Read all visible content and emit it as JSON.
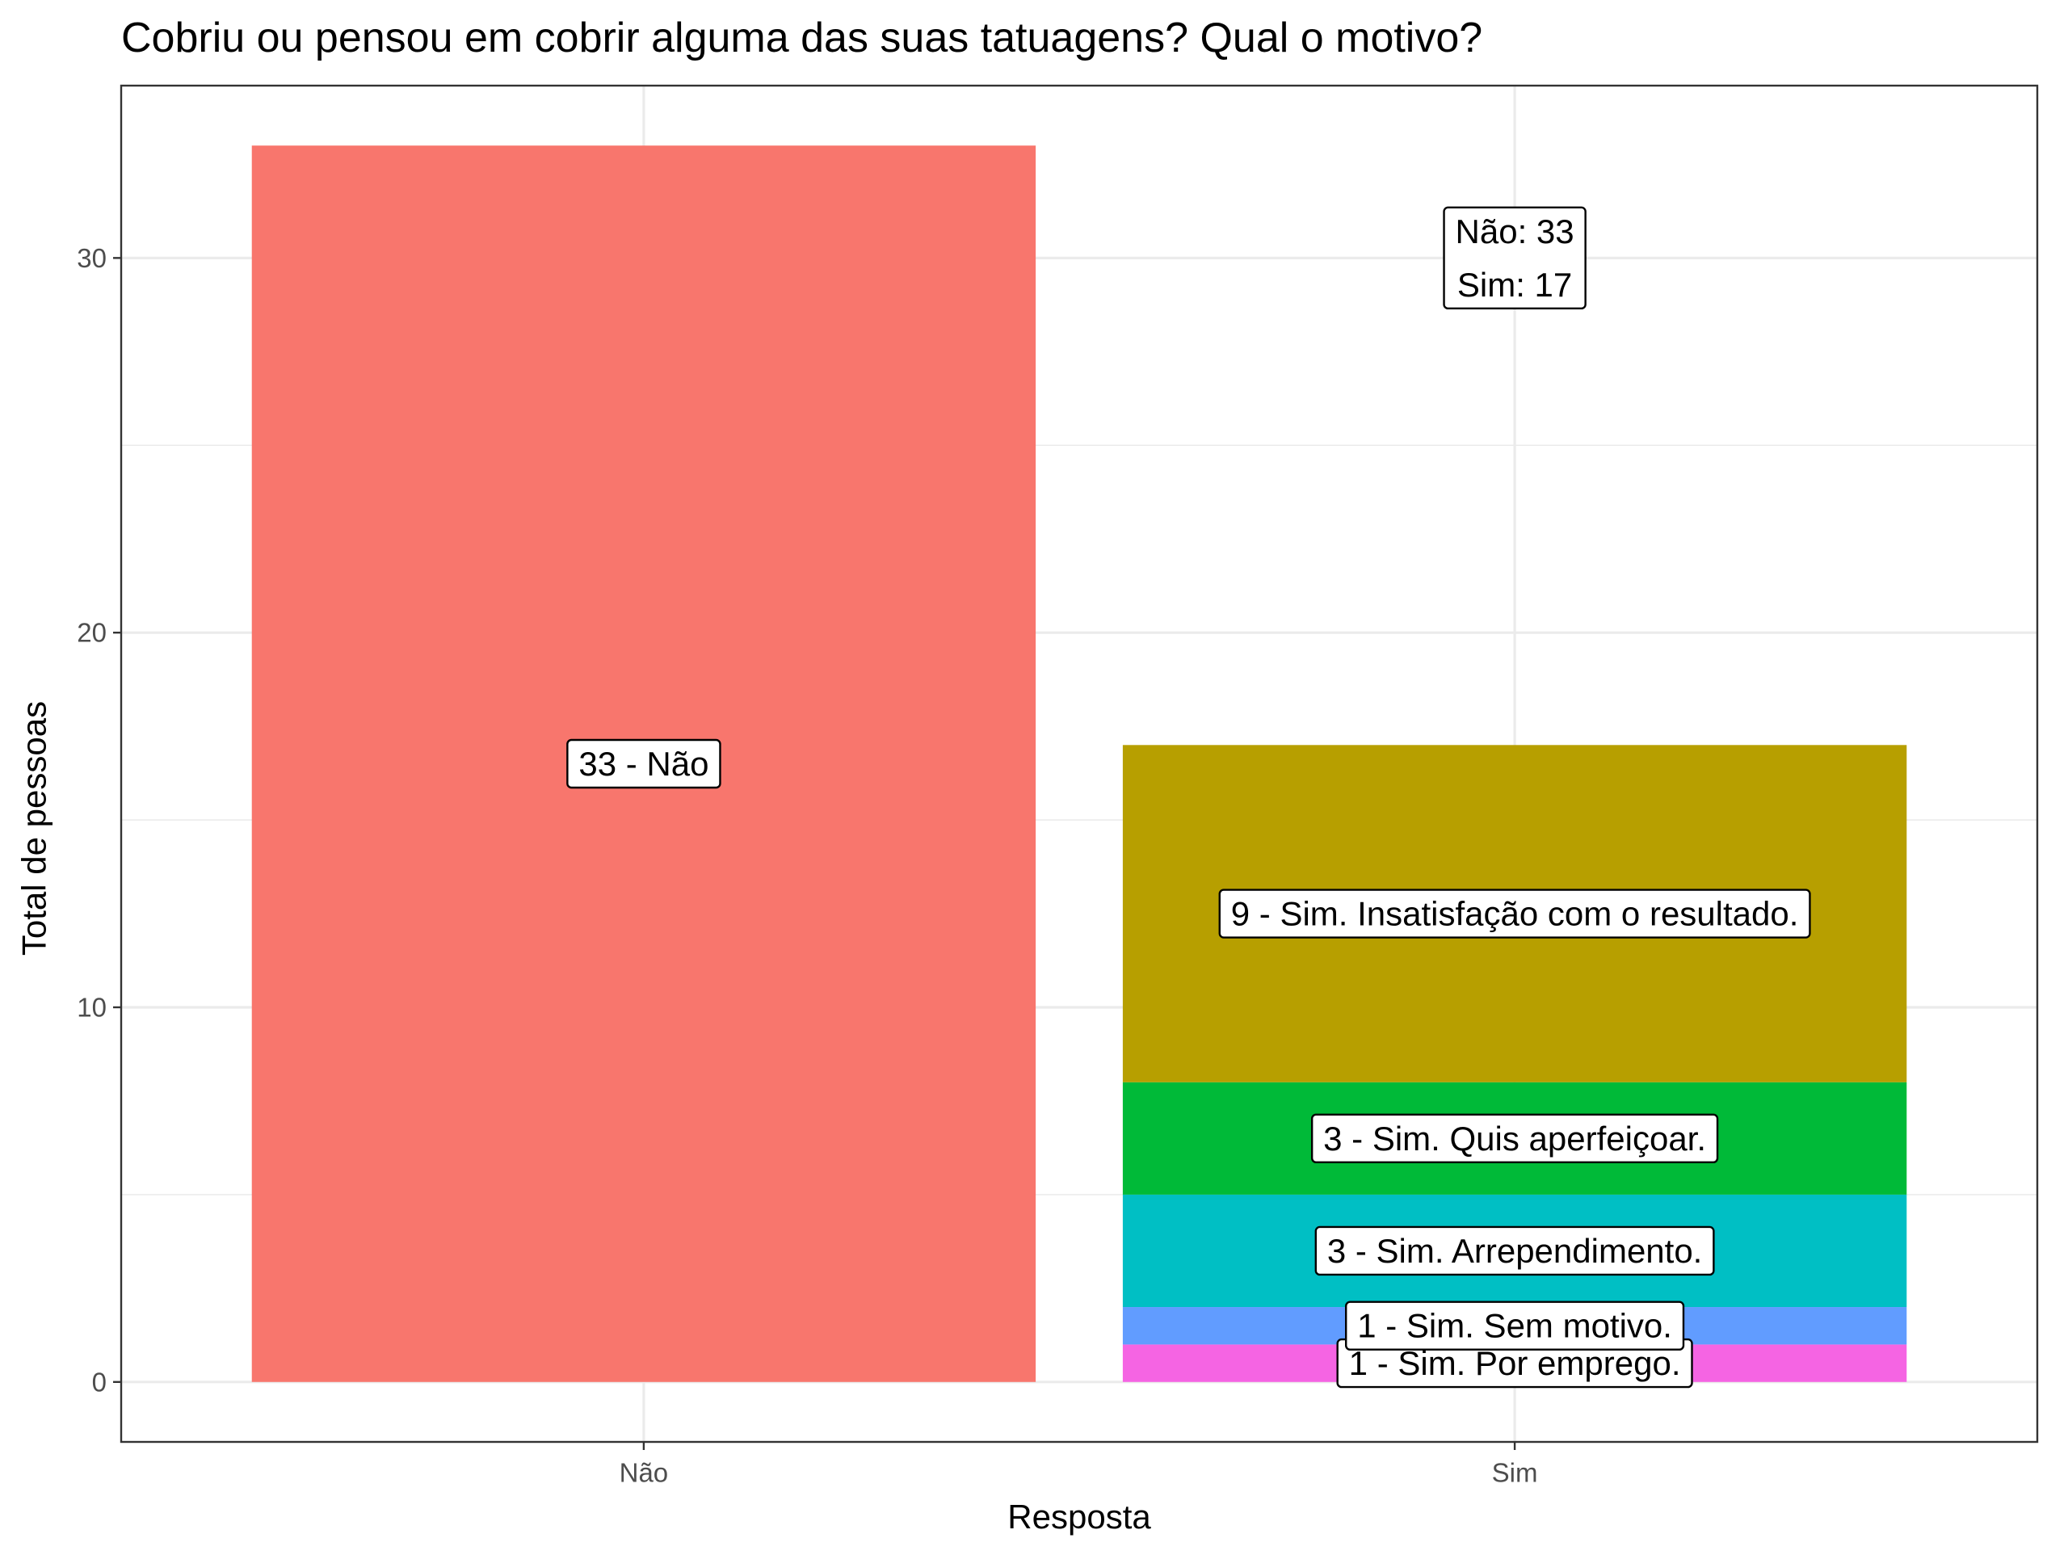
{
  "chart_data": {
    "type": "bar",
    "stacked": true,
    "title": "Cobriu ou pensou em cobrir alguma das suas tatuagens? Qual o motivo?",
    "xlabel": "Resposta",
    "ylabel": "Total de pessoas",
    "categories": [
      "Não",
      "Sim"
    ],
    "ylim": [
      -1.6,
      34.6
    ],
    "yticks": [
      0,
      10,
      20,
      30
    ],
    "grid": true,
    "legend": "none",
    "segments": [
      {
        "category": "Não",
        "label": "33 - Não",
        "value": 33,
        "color": "#F8766D"
      },
      {
        "category": "Sim",
        "label": "1 - Sim. Por emprego.",
        "value": 1,
        "color": "#F564E3"
      },
      {
        "category": "Sim",
        "label": "1 - Sim. Sem motivo.",
        "value": 1,
        "color": "#619CFF"
      },
      {
        "category": "Sim",
        "label": "3 - Sim. Arrependimento.",
        "value": 3,
        "color": "#00BFC4"
      },
      {
        "category": "Sim",
        "label": "3 - Sim. Quis aperfeiçoar.",
        "value": 3,
        "color": "#00BA38"
      },
      {
        "category": "Sim",
        "label": "9 - Sim. Insatisfação com o resultado.",
        "value": 9,
        "color": "#B79F00"
      }
    ],
    "annotation": {
      "lines": [
        "Não: 33",
        "Sim: 17"
      ],
      "x": "Sim",
      "y": 30
    }
  }
}
